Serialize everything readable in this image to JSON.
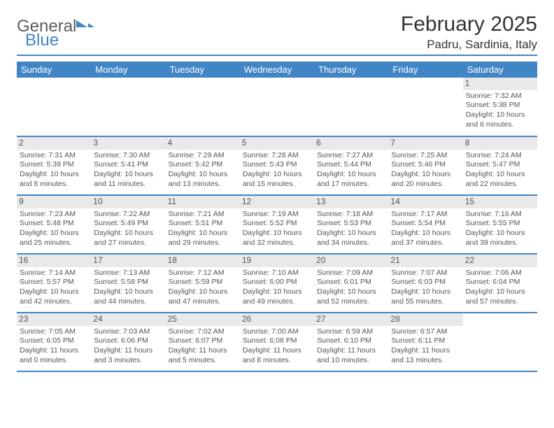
{
  "brand": {
    "part1": "General",
    "part2": "Blue"
  },
  "title": "February 2025",
  "location": "Padru, Sardinia, Italy",
  "colors": {
    "accent": "#4185c6",
    "text": "#333333",
    "muted": "#555555",
    "daybg": "#e9e9e9"
  },
  "weekdays": [
    "Sunday",
    "Monday",
    "Tuesday",
    "Wednesday",
    "Thursday",
    "Friday",
    "Saturday"
  ],
  "layout": {
    "columns": 7,
    "rows": 5,
    "first_weekday_index": 6
  },
  "days": [
    {
      "n": 1,
      "sunrise": "7:32 AM",
      "sunset": "5:38 PM",
      "dl_h": 10,
      "dl_m": 6
    },
    {
      "n": 2,
      "sunrise": "7:31 AM",
      "sunset": "5:39 PM",
      "dl_h": 10,
      "dl_m": 8
    },
    {
      "n": 3,
      "sunrise": "7:30 AM",
      "sunset": "5:41 PM",
      "dl_h": 10,
      "dl_m": 11
    },
    {
      "n": 4,
      "sunrise": "7:29 AM",
      "sunset": "5:42 PM",
      "dl_h": 10,
      "dl_m": 13
    },
    {
      "n": 5,
      "sunrise": "7:28 AM",
      "sunset": "5:43 PM",
      "dl_h": 10,
      "dl_m": 15
    },
    {
      "n": 6,
      "sunrise": "7:27 AM",
      "sunset": "5:44 PM",
      "dl_h": 10,
      "dl_m": 17
    },
    {
      "n": 7,
      "sunrise": "7:25 AM",
      "sunset": "5:46 PM",
      "dl_h": 10,
      "dl_m": 20
    },
    {
      "n": 8,
      "sunrise": "7:24 AM",
      "sunset": "5:47 PM",
      "dl_h": 10,
      "dl_m": 22
    },
    {
      "n": 9,
      "sunrise": "7:23 AM",
      "sunset": "5:48 PM",
      "dl_h": 10,
      "dl_m": 25
    },
    {
      "n": 10,
      "sunrise": "7:22 AM",
      "sunset": "5:49 PM",
      "dl_h": 10,
      "dl_m": 27
    },
    {
      "n": 11,
      "sunrise": "7:21 AM",
      "sunset": "5:51 PM",
      "dl_h": 10,
      "dl_m": 29
    },
    {
      "n": 12,
      "sunrise": "7:19 AM",
      "sunset": "5:52 PM",
      "dl_h": 10,
      "dl_m": 32
    },
    {
      "n": 13,
      "sunrise": "7:18 AM",
      "sunset": "5:53 PM",
      "dl_h": 10,
      "dl_m": 34
    },
    {
      "n": 14,
      "sunrise": "7:17 AM",
      "sunset": "5:54 PM",
      "dl_h": 10,
      "dl_m": 37
    },
    {
      "n": 15,
      "sunrise": "7:16 AM",
      "sunset": "5:55 PM",
      "dl_h": 10,
      "dl_m": 39
    },
    {
      "n": 16,
      "sunrise": "7:14 AM",
      "sunset": "5:57 PM",
      "dl_h": 10,
      "dl_m": 42
    },
    {
      "n": 17,
      "sunrise": "7:13 AM",
      "sunset": "5:58 PM",
      "dl_h": 10,
      "dl_m": 44
    },
    {
      "n": 18,
      "sunrise": "7:12 AM",
      "sunset": "5:59 PM",
      "dl_h": 10,
      "dl_m": 47
    },
    {
      "n": 19,
      "sunrise": "7:10 AM",
      "sunset": "6:00 PM",
      "dl_h": 10,
      "dl_m": 49
    },
    {
      "n": 20,
      "sunrise": "7:09 AM",
      "sunset": "6:01 PM",
      "dl_h": 10,
      "dl_m": 52
    },
    {
      "n": 21,
      "sunrise": "7:07 AM",
      "sunset": "6:03 PM",
      "dl_h": 10,
      "dl_m": 55
    },
    {
      "n": 22,
      "sunrise": "7:06 AM",
      "sunset": "6:04 PM",
      "dl_h": 10,
      "dl_m": 57
    },
    {
      "n": 23,
      "sunrise": "7:05 AM",
      "sunset": "6:05 PM",
      "dl_h": 11,
      "dl_m": 0
    },
    {
      "n": 24,
      "sunrise": "7:03 AM",
      "sunset": "6:06 PM",
      "dl_h": 11,
      "dl_m": 3
    },
    {
      "n": 25,
      "sunrise": "7:02 AM",
      "sunset": "6:07 PM",
      "dl_h": 11,
      "dl_m": 5
    },
    {
      "n": 26,
      "sunrise": "7:00 AM",
      "sunset": "6:08 PM",
      "dl_h": 11,
      "dl_m": 8
    },
    {
      "n": 27,
      "sunrise": "6:59 AM",
      "sunset": "6:10 PM",
      "dl_h": 11,
      "dl_m": 10
    },
    {
      "n": 28,
      "sunrise": "6:57 AM",
      "sunset": "6:11 PM",
      "dl_h": 11,
      "dl_m": 13
    }
  ],
  "labels": {
    "sunrise_prefix": "Sunrise: ",
    "sunset_prefix": "Sunset: ",
    "daylight_prefix": "Daylight: ",
    "hours_word": " hours",
    "and_word": "and ",
    "minutes_word": " minutes."
  }
}
